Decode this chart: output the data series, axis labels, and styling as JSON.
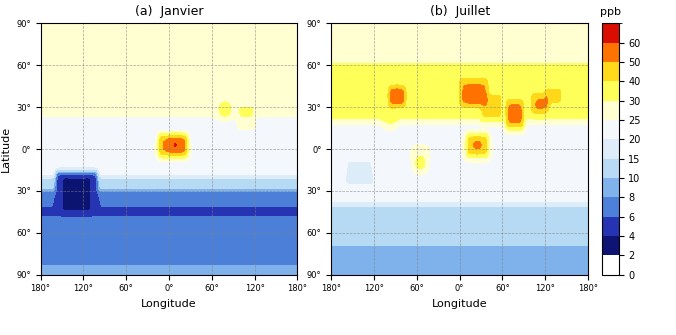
{
  "title_a": "(a)  Janvier",
  "title_b": "(b)  Juillet",
  "colorbar_label": "ppb",
  "colorbar_ticks": [
    0,
    2,
    4,
    6,
    8,
    10,
    15,
    20,
    25,
    30,
    40,
    50,
    60
  ],
  "vmin": 0,
  "vmax": 65,
  "xlabel": "Longitude",
  "ylabel": "Latitude",
  "lat_ticks": [
    90,
    60,
    30,
    0,
    -30,
    -60,
    -90
  ],
  "lon_ticks": [
    -180,
    -120,
    -60,
    0,
    60,
    120,
    180
  ],
  "background_color": "#ffffff",
  "fig_background": "#ffffff"
}
